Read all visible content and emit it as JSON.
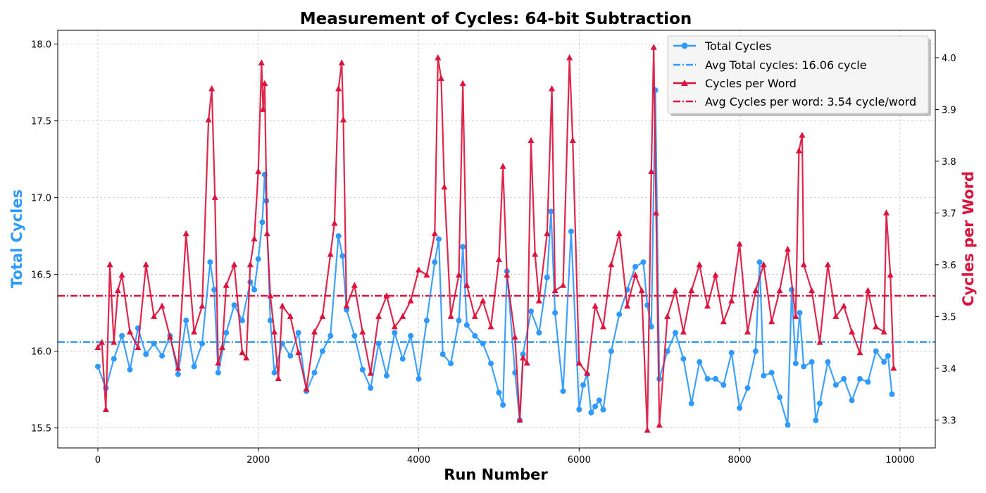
{
  "chart_data": {
    "type": "line",
    "title": "Measurement of Cycles: 64-bit Subtraction",
    "xlabel": "Run Number",
    "ylabel_left": "Total Cycles",
    "ylabel_right": "Cycles per Word",
    "xlim": [
      -500,
      10440
    ],
    "ylim_left": [
      15.37,
      18.09
    ],
    "ylim_right": [
      3.246,
      4.053
    ],
    "x_ticks": [
      0,
      2000,
      4000,
      6000,
      8000,
      10000
    ],
    "y_ticks_left": [
      15.5,
      16.0,
      16.5,
      17.0,
      17.5,
      18.0
    ],
    "y_ticks_left_labels": [
      "15.5",
      "16.0",
      "16.5",
      "17.0",
      "17.5",
      "18.0"
    ],
    "y_ticks_right": [
      3.3,
      3.4,
      3.5,
      3.6,
      3.7,
      3.8,
      3.9,
      4.0
    ],
    "y_ticks_right_labels": [
      "3.3",
      "3.4",
      "3.5",
      "3.6",
      "3.7",
      "3.8",
      "3.9",
      "4.0"
    ],
    "grid": true,
    "legend_position": "top-right",
    "colors": {
      "total": "#2e99ff",
      "cpw": "#dc143c"
    },
    "series": [
      {
        "name": "Total Cycles",
        "axis": "left",
        "marker": "circle",
        "x": [
          0,
          100,
          200,
          300,
          400,
          500,
          600,
          700,
          800,
          900,
          1000,
          1100,
          1200,
          1300,
          1400,
          1450,
          1500,
          1600,
          1700,
          1800,
          1900,
          1950,
          2000,
          2050,
          2080,
          2100,
          2150,
          2200,
          2300,
          2400,
          2500,
          2600,
          2700,
          2800,
          2900,
          3000,
          3050,
          3100,
          3200,
          3300,
          3400,
          3500,
          3600,
          3700,
          3800,
          3900,
          4000,
          4100,
          4200,
          4250,
          4300,
          4400,
          4500,
          4550,
          4600,
          4700,
          4800,
          4900,
          5000,
          5050,
          5100,
          5200,
          5260,
          5300,
          5400,
          5500,
          5600,
          5650,
          5700,
          5800,
          5900,
          6000,
          6050,
          6100,
          6150,
          6200,
          6250,
          6300,
          6400,
          6500,
          6600,
          6700,
          6800,
          6850,
          6900,
          6950,
          7000,
          7100,
          7200,
          7300,
          7400,
          7500,
          7600,
          7700,
          7800,
          7900,
          8000,
          8100,
          8200,
          8250,
          8300,
          8400,
          8500,
          8600,
          8650,
          8700,
          8750,
          8800,
          8900,
          8950,
          9000,
          9100,
          9200,
          9300,
          9400,
          9500,
          9600,
          9700,
          9800,
          9850,
          9900
        ],
        "values": [
          15.9,
          15.76,
          15.95,
          16.1,
          15.88,
          16.15,
          15.98,
          16.05,
          15.97,
          16.1,
          15.85,
          16.2,
          15.9,
          16.05,
          16.58,
          16.4,
          15.86,
          16.12,
          16.3,
          16.2,
          16.45,
          16.4,
          16.6,
          16.84,
          17.15,
          16.98,
          16.2,
          15.86,
          16.05,
          15.97,
          16.12,
          15.74,
          15.86,
          16.0,
          16.1,
          16.75,
          16.62,
          16.27,
          16.1,
          15.88,
          15.76,
          16.05,
          15.84,
          16.12,
          15.95,
          16.1,
          15.82,
          16.2,
          16.58,
          16.73,
          15.98,
          15.92,
          16.2,
          16.68,
          16.17,
          16.1,
          16.05,
          15.92,
          15.73,
          15.65,
          16.52,
          15.86,
          15.55,
          15.98,
          16.26,
          16.12,
          16.48,
          16.91,
          16.25,
          15.74,
          16.78,
          15.62,
          15.78,
          15.85,
          15.6,
          15.64,
          15.68,
          15.62,
          16.0,
          16.24,
          16.4,
          16.55,
          16.58,
          16.3,
          16.16,
          17.7,
          15.82,
          16.0,
          16.12,
          15.95,
          15.66,
          15.93,
          15.82,
          15.82,
          15.78,
          15.99,
          15.63,
          15.76,
          16.0,
          16.58,
          15.84,
          15.86,
          15.7,
          15.52,
          16.4,
          15.92,
          16.25,
          15.9,
          15.93,
          15.55,
          15.66,
          15.93,
          15.78,
          15.82,
          15.68,
          15.82,
          15.8,
          16.0,
          15.93,
          15.97,
          15.72
        ]
      },
      {
        "name": "Cycles per Word",
        "axis": "right",
        "marker": "triangle",
        "x": [
          0,
          50,
          100,
          150,
          200,
          250,
          300,
          400,
          500,
          600,
          700,
          800,
          900,
          1000,
          1100,
          1200,
          1300,
          1380,
          1420,
          1460,
          1500,
          1550,
          1600,
          1700,
          1800,
          1850,
          1900,
          1950,
          2000,
          2040,
          2060,
          2080,
          2110,
          2150,
          2200,
          2250,
          2300,
          2400,
          2500,
          2600,
          2700,
          2800,
          2900,
          2950,
          3000,
          3040,
          3060,
          3100,
          3200,
          3300,
          3400,
          3500,
          3600,
          3700,
          3800,
          3900,
          4000,
          4100,
          4200,
          4240,
          4280,
          4320,
          4400,
          4500,
          4550,
          4600,
          4700,
          4800,
          4900,
          5000,
          5050,
          5100,
          5200,
          5260,
          5300,
          5350,
          5400,
          5450,
          5500,
          5600,
          5660,
          5700,
          5800,
          5880,
          5920,
          6000,
          6100,
          6200,
          6300,
          6400,
          6500,
          6600,
          6700,
          6780,
          6850,
          6900,
          6930,
          6960,
          7000,
          7100,
          7200,
          7300,
          7400,
          7500,
          7600,
          7700,
          7800,
          7900,
          8000,
          8100,
          8200,
          8300,
          8400,
          8500,
          8600,
          8700,
          8740,
          8780,
          8800,
          8900,
          9000,
          9100,
          9200,
          9300,
          9400,
          9500,
          9600,
          9700,
          9800,
          9830,
          9880,
          9920
        ],
        "values": [
          3.44,
          3.45,
          3.32,
          3.6,
          3.45,
          3.55,
          3.58,
          3.47,
          3.44,
          3.6,
          3.5,
          3.52,
          3.46,
          3.4,
          3.66,
          3.47,
          3.52,
          3.88,
          3.94,
          3.73,
          3.41,
          3.44,
          3.56,
          3.6,
          3.43,
          3.42,
          3.6,
          3.65,
          3.78,
          3.99,
          3.9,
          3.95,
          3.66,
          3.54,
          3.47,
          3.38,
          3.52,
          3.5,
          3.43,
          3.36,
          3.47,
          3.5,
          3.62,
          3.68,
          3.94,
          3.99,
          3.88,
          3.52,
          3.56,
          3.47,
          3.39,
          3.5,
          3.54,
          3.48,
          3.5,
          3.53,
          3.59,
          3.58,
          3.66,
          4.0,
          3.96,
          3.75,
          3.5,
          3.58,
          3.95,
          3.56,
          3.5,
          3.53,
          3.48,
          3.61,
          3.79,
          3.58,
          3.46,
          3.3,
          3.42,
          3.41,
          3.84,
          3.62,
          3.53,
          3.66,
          3.94,
          3.55,
          3.56,
          4.0,
          3.84,
          3.41,
          3.39,
          3.52,
          3.48,
          3.6,
          3.66,
          3.52,
          3.58,
          3.55,
          3.28,
          3.78,
          4.02,
          3.7,
          3.29,
          3.5,
          3.55,
          3.47,
          3.55,
          3.6,
          3.52,
          3.58,
          3.49,
          3.53,
          3.64,
          3.47,
          3.55,
          3.6,
          3.49,
          3.55,
          3.63,
          3.5,
          3.82,
          3.85,
          3.6,
          3.55,
          3.45,
          3.6,
          3.5,
          3.52,
          3.47,
          3.43,
          3.55,
          3.48,
          3.47,
          3.7,
          3.58,
          3.4
        ]
      }
    ],
    "reference_lines": [
      {
        "name": "Avg Total cycles: 16.06 cycle",
        "axis": "left",
        "value": 16.06,
        "style": "dashdot"
      },
      {
        "name": "Avg Cycles per word: 3.54 cycle/word",
        "axis": "right",
        "value": 3.54,
        "style": "dashdot"
      }
    ]
  }
}
